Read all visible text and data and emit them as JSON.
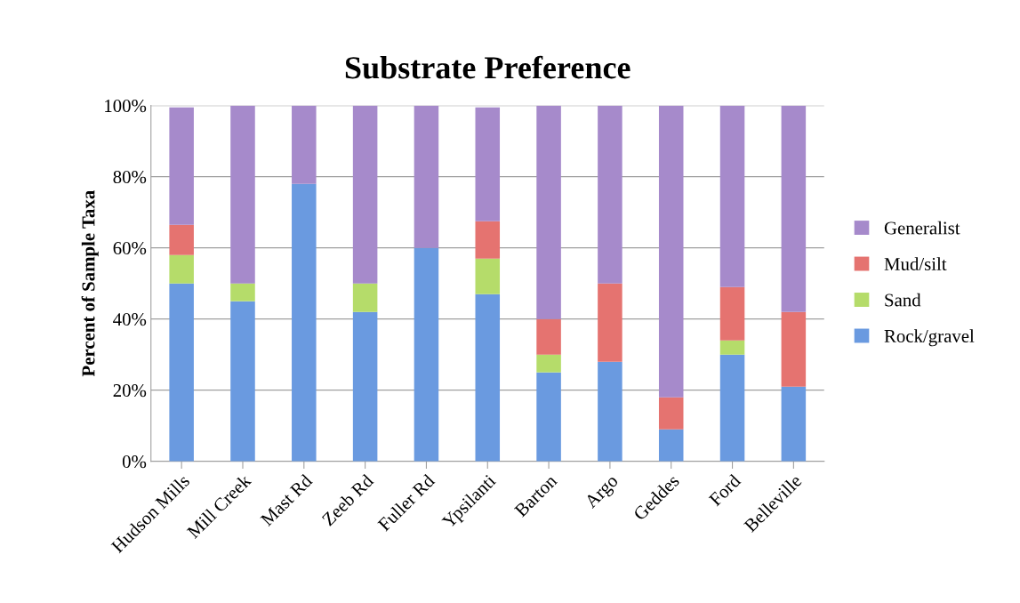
{
  "chart_data": {
    "type": "bar",
    "title": "Substrate Preference",
    "ylabel": "Percent of Sample Taxa",
    "categories": [
      "Hudson Mills",
      "Mill Creek",
      "Mast Rd",
      "Zeeb Rd",
      "Fuller Rd",
      "Ypsilanti",
      "Barton",
      "Argo",
      "Geddes",
      "Ford",
      "Belleville"
    ],
    "stacked": true,
    "ylim": [
      0,
      100
    ],
    "yticks": [
      {
        "value": 0,
        "label": "0%"
      },
      {
        "value": 20,
        "label": "20%"
      },
      {
        "value": 40,
        "label": "40%"
      },
      {
        "value": 60,
        "label": "60%"
      },
      {
        "value": 80,
        "label": "80%"
      },
      {
        "value": 100,
        "label": "100%"
      }
    ],
    "grid": "y",
    "legend": "right",
    "series": [
      {
        "name": "Rock/gravel",
        "color": "#6a9ae0",
        "values": [
          50,
          45,
          78,
          42,
          60,
          47,
          25,
          28,
          9,
          30,
          21
        ]
      },
      {
        "name": "Sand",
        "color": "#b5dc6a",
        "values": [
          8,
          5,
          0,
          8,
          0,
          10,
          5,
          0,
          0,
          4,
          0
        ]
      },
      {
        "name": "Mud/silt",
        "color": "#e57370",
        "values": [
          8.5,
          0,
          0,
          0,
          0,
          10.5,
          10,
          22,
          9,
          15,
          21
        ]
      },
      {
        "name": "Generalist",
        "color": "#a68acb",
        "values": [
          33,
          50,
          22,
          50,
          40,
          32,
          60,
          50,
          82,
          51,
          58
        ]
      }
    ]
  }
}
